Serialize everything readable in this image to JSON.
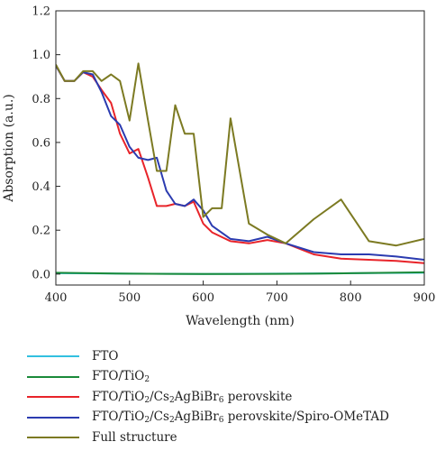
{
  "chart_data": {
    "type": "line",
    "title": "",
    "xlabel": "Wavelength (nm)",
    "ylabel": "Absorption (a.u.)",
    "xlim": [
      400,
      900
    ],
    "ylim": [
      -0.05,
      1.2
    ],
    "x_ticks": [
      "400",
      "500",
      "600",
      "700",
      "800",
      "900"
    ],
    "y_ticks": [
      "0.0",
      "0.2",
      "0.4",
      "0.6",
      "0.8",
      "1.0",
      "1.2"
    ],
    "grid": false,
    "legend_position": "below",
    "series": [
      {
        "name": "FTO",
        "name_parts": [
          {
            "t": "FTO"
          }
        ],
        "color": "#33c0e0",
        "x": [
          400,
          500,
          600,
          700,
          800,
          900
        ],
        "y": [
          0.004,
          0.002,
          0.0,
          0.002,
          0.004,
          0.006
        ]
      },
      {
        "name": "FTO/TiO2",
        "name_parts": [
          {
            "t": "FTO/TiO"
          },
          {
            "sub": "2"
          }
        ],
        "color": "#1a8a3a",
        "x": [
          400,
          450,
          500,
          550,
          600,
          650,
          700,
          750,
          800,
          850,
          900
        ],
        "y": [
          0.006,
          0.004,
          0.002,
          0.001,
          0.0,
          0.0,
          0.001,
          0.002,
          0.004,
          0.006,
          0.008
        ]
      },
      {
        "name": "FTO/TiO2/Cs2AgBiBr6 perovskite",
        "name_parts": [
          {
            "t": "FTO/TiO"
          },
          {
            "sub": "2"
          },
          {
            "t": "/Cs"
          },
          {
            "sub": "2"
          },
          {
            "t": "AgBiBr"
          },
          {
            "sub": "6"
          },
          {
            "t": " perovskite"
          }
        ],
        "color": "#e8242a",
        "x": [
          400,
          412,
          425,
          437,
          450,
          462,
          475,
          487,
          500,
          512,
          525,
          537,
          550,
          562,
          575,
          587,
          600,
          612,
          637,
          662,
          687,
          712,
          750,
          787,
          825,
          862,
          900
        ],
        "y": [
          0.95,
          0.88,
          0.88,
          0.92,
          0.9,
          0.84,
          0.78,
          0.64,
          0.55,
          0.57,
          0.44,
          0.31,
          0.31,
          0.32,
          0.31,
          0.33,
          0.23,
          0.19,
          0.15,
          0.14,
          0.155,
          0.14,
          0.09,
          0.07,
          0.065,
          0.06,
          0.05
        ]
      },
      {
        "name": "FTO/TiO2/Cs2AgBiBr6 perovskite/Spiro-OMeTAD",
        "name_parts": [
          {
            "t": "FTO/TiO"
          },
          {
            "sub": "2"
          },
          {
            "t": "/Cs"
          },
          {
            "sub": "2"
          },
          {
            "t": "AgBiBr"
          },
          {
            "sub": "6"
          },
          {
            "t": " perovskite/Spiro-OMeTAD"
          }
        ],
        "color": "#2b3bb0",
        "x": [
          400,
          412,
          425,
          437,
          450,
          462,
          475,
          487,
          500,
          512,
          525,
          537,
          550,
          562,
          575,
          587,
          600,
          612,
          637,
          662,
          687,
          712,
          750,
          787,
          825,
          862,
          900
        ],
        "y": [
          0.95,
          0.88,
          0.88,
          0.92,
          0.91,
          0.83,
          0.72,
          0.68,
          0.58,
          0.53,
          0.52,
          0.53,
          0.38,
          0.32,
          0.31,
          0.34,
          0.29,
          0.22,
          0.16,
          0.15,
          0.17,
          0.14,
          0.1,
          0.09,
          0.09,
          0.08,
          0.065
        ]
      },
      {
        "name": "Full structure",
        "name_parts": [
          {
            "t": "Full structure"
          }
        ],
        "color": "#7c7a22",
        "x": [
          400,
          412,
          425,
          437,
          450,
          462,
          475,
          487,
          500,
          512,
          525,
          537,
          550,
          562,
          575,
          587,
          600,
          612,
          625,
          637,
          662,
          687,
          712,
          750,
          787,
          825,
          862,
          900
        ],
        "y": [
          0.955,
          0.88,
          0.88,
          0.925,
          0.925,
          0.88,
          0.91,
          0.88,
          0.7,
          0.96,
          0.7,
          0.47,
          0.47,
          0.77,
          0.64,
          0.64,
          0.26,
          0.3,
          0.3,
          0.71,
          0.23,
          0.18,
          0.14,
          0.25,
          0.34,
          0.15,
          0.13,
          0.16
        ]
      }
    ]
  }
}
